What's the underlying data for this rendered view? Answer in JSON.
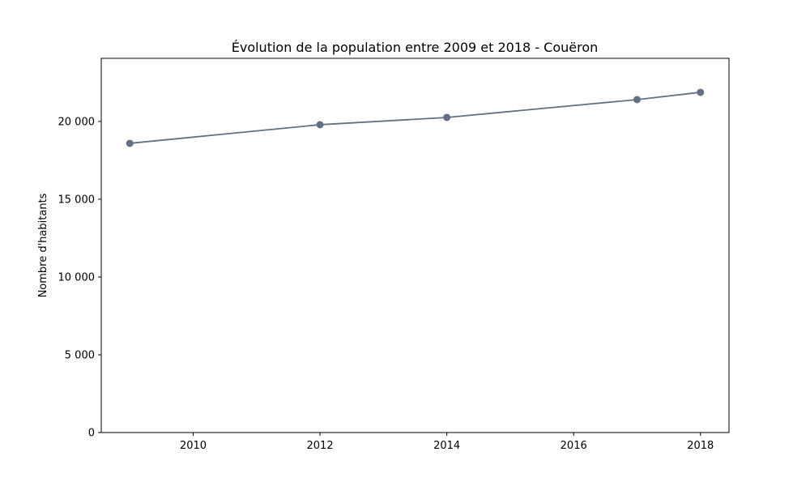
{
  "chart_data": {
    "type": "line",
    "title": "Évolution de la population entre 2009 et 2018 - Couëron",
    "y_label": "Nombre d'habitants",
    "x": [
      2009,
      2012,
      2014,
      2017,
      2018
    ],
    "series": [
      {
        "color": "#627085",
        "values": [
          18594,
          19792,
          20260,
          21406,
          21875
        ]
      }
    ],
    "xlim": [
      2008.55,
      2018.45
    ],
    "xticks": [
      2010,
      2012,
      2014,
      2016,
      2018
    ],
    "ylim": [
      0,
      24060
    ],
    "yticks": [
      {
        "value": 0,
        "label": "0"
      },
      {
        "value": 5000,
        "label": "5 000"
      },
      {
        "value": 10000,
        "label": "10 000"
      },
      {
        "value": 15000,
        "label": "15 000"
      },
      {
        "value": 20000,
        "label": "20 000"
      }
    ]
  }
}
